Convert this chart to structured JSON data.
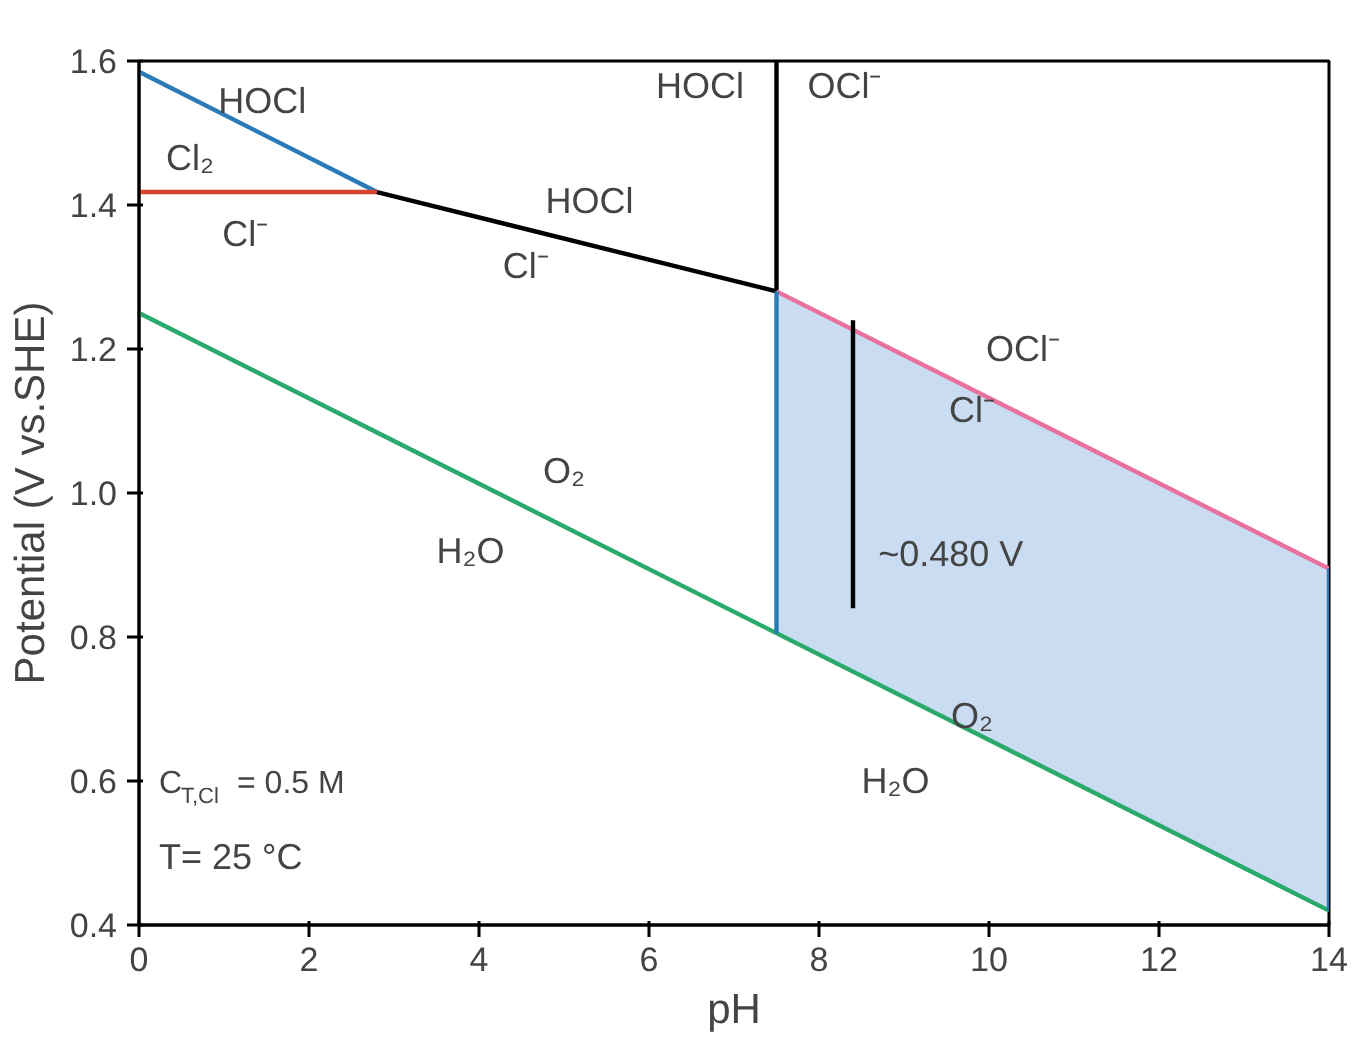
{
  "chart_data": {
    "type": "line",
    "xlabel": "pH",
    "ylabel": "Potential (V vs.SHE)",
    "xlim": [
      0,
      14
    ],
    "ylim": [
      0.4,
      1.6
    ],
    "xticks": [
      0,
      2,
      4,
      6,
      8,
      10,
      12,
      14
    ],
    "yticks": [
      0.4,
      0.6,
      0.8,
      {
        "value": 1.0,
        "label": "1.0"
      },
      1.2,
      1.4,
      1.6
    ],
    "grid": false,
    "series": [
      {
        "x": [
          0,
          2.8
        ],
        "values": [
          1.585,
          1.418
        ],
        "color": "#2a7ab8"
      },
      {
        "x": [
          0,
          2.8
        ],
        "values": [
          1.418,
          1.418
        ],
        "color": "#d9432c"
      },
      {
        "x": [
          2.8,
          7.5
        ],
        "values": [
          1.418,
          1.28
        ],
        "color": "#000000"
      },
      {
        "x": [
          7.5,
          7.5
        ],
        "values": [
          1.28,
          1.6
        ],
        "color": "#000000"
      },
      {
        "x": [
          7.5,
          14
        ],
        "values": [
          1.28,
          0.895
        ],
        "lower": [
          0.805,
          0.42
        ],
        "upper": [
          1.28,
          0.895
        ],
        "color": "#e8719e"
      },
      {
        "x": [
          0,
          14
        ],
        "values": [
          1.25,
          0.42
        ],
        "color": "#2aaa6a"
      },
      {
        "x": [
          7.5,
          7.5
        ],
        "values": [
          0.805,
          1.28
        ],
        "color": "#2a7ab8"
      },
      {
        "x": [
          14,
          14
        ],
        "values": [
          0.42,
          0.895
        ],
        "color": "#2a7ab8"
      },
      {
        "x": [
          8.4,
          8.4
        ],
        "values": [
          1.24,
          0.84
        ],
        "color": "#000000"
      }
    ],
    "annotations": [
      "HOCl",
      "Cl₂",
      "Cl⁻",
      "HOCl",
      "Cl⁻",
      "HOCl",
      "OCl⁻",
      "OCl⁻",
      "Cl⁻",
      "O₂",
      "H₂O",
      "~0.480 V",
      "O₂",
      "H₂O",
      "C$_{T,Cl}$ = 0.5 M",
      "T= 25 °C"
    ]
  }
}
